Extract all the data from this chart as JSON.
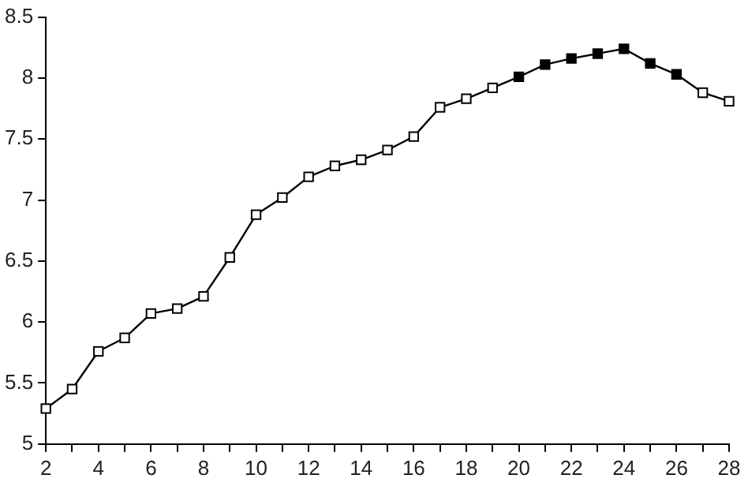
{
  "chart_data": {
    "type": "line",
    "x": [
      2,
      3,
      4,
      5,
      6,
      7,
      8,
      9,
      10,
      11,
      12,
      13,
      14,
      15,
      16,
      17,
      18,
      19,
      20,
      21,
      22,
      23,
      24,
      25,
      26,
      27,
      28
    ],
    "series": [
      {
        "color": "#000000",
        "values": [
          5.29,
          5.45,
          5.76,
          5.87,
          6.07,
          6.11,
          6.21,
          6.53,
          6.88,
          7.02,
          7.19,
          7.28,
          7.33,
          7.41,
          7.52,
          7.76,
          7.83,
          7.92,
          8.01,
          8.11,
          8.16,
          8.2,
          8.24,
          8.12,
          8.03,
          7.88,
          7.81
        ],
        "colors": [
          "#ffffff",
          "#ffffff",
          "#ffffff",
          "#ffffff",
          "#ffffff",
          "#ffffff",
          "#ffffff",
          "#ffffff",
          "#ffffff",
          "#ffffff",
          "#ffffff",
          "#ffffff",
          "#ffffff",
          "#ffffff",
          "#ffffff",
          "#ffffff",
          "#ffffff",
          "#ffffff",
          "#000000",
          "#000000",
          "#000000",
          "#000000",
          "#000000",
          "#000000",
          "#000000",
          "#ffffff",
          "#ffffff"
        ]
      }
    ],
    "xlim": [
      2,
      28
    ],
    "xticks": [
      2,
      {
        "value": 3,
        "label": null
      },
      4,
      {
        "value": 5,
        "label": null
      },
      6,
      {
        "value": 7,
        "label": null
      },
      8,
      {
        "value": 9,
        "label": null
      },
      10,
      {
        "value": 11,
        "label": null
      },
      12,
      {
        "value": 13,
        "label": null
      },
      14,
      {
        "value": 15,
        "label": null
      },
      16,
      {
        "value": 17,
        "label": null
      },
      18,
      {
        "value": 19,
        "label": null
      },
      20,
      {
        "value": 21,
        "label": null
      },
      22,
      {
        "value": 23,
        "label": null
      },
      24,
      {
        "value": 25,
        "label": null
      },
      26,
      {
        "value": 27,
        "label": null
      },
      28
    ],
    "ylim": [
      5,
      8.5
    ],
    "yticks": [
      5,
      5.5,
      6,
      6.5,
      7,
      7.5,
      8,
      8.5
    ],
    "grid": false,
    "legend": false,
    "marker": "square",
    "line_style": "solid"
  }
}
